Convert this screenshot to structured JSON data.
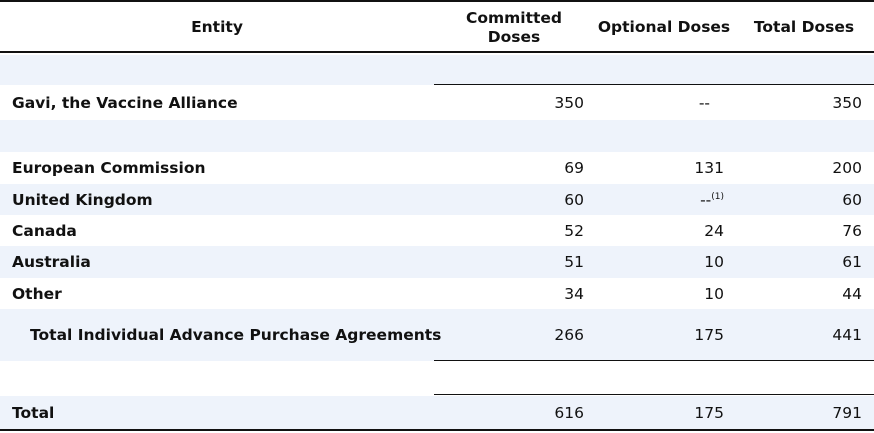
{
  "header": {
    "entity": "Entity",
    "committed": "Committed Doses",
    "optional": "Optional Doses",
    "total": "Total Doses"
  },
  "rows": {
    "gavi": {
      "label": "Gavi, the Vaccine Alliance",
      "committed": "350",
      "optional": "--",
      "total": "350"
    },
    "ec": {
      "label": "European Commission",
      "committed": "69",
      "optional": "131",
      "total": "200"
    },
    "uk": {
      "label": "United Kingdom",
      "committed": "60",
      "optional": "--",
      "optional_note": "(1)",
      "total": "60"
    },
    "canada": {
      "label": "Canada",
      "committed": "52",
      "optional": "24",
      "total": "76"
    },
    "australia": {
      "label": "Australia",
      "committed": "51",
      "optional": "10",
      "total": "61"
    },
    "other": {
      "label": "Other",
      "committed": "34",
      "optional": "10",
      "total": "44"
    },
    "subtotal": {
      "label": "Total Individual Advance Purchase Agreements",
      "committed": "266",
      "optional": "175",
      "total": "441"
    },
    "total": {
      "label": "Total",
      "committed": "616",
      "optional": "175",
      "total": "791"
    }
  }
}
